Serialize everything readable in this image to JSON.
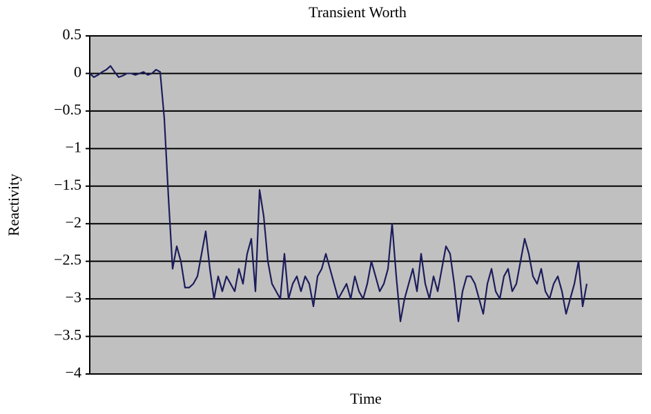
{
  "chart_data": {
    "type": "line",
    "title": "Transient Worth",
    "x_label": "Time",
    "y_label": "Reactivity",
    "values": [
      0,
      -0.05,
      -0.02,
      0.02,
      0.05,
      0.1,
      0.02,
      -0.05,
      -0.03,
      0,
      0,
      -0.02,
      0,
      0.02,
      -0.02,
      0,
      0.05,
      0.02,
      -0.6,
      -1.65,
      -2.6,
      -2.3,
      -2.5,
      -2.85,
      -2.85,
      -2.8,
      -2.7,
      -2.4,
      -2.1,
      -2.6,
      -3.0,
      -2.7,
      -2.9,
      -2.7,
      -2.8,
      -2.9,
      -2.6,
      -2.8,
      -2.4,
      -2.2,
      -2.9,
      -1.55,
      -1.9,
      -2.5,
      -2.8,
      -2.9,
      -3.0,
      -2.4,
      -3.0,
      -2.8,
      -2.7,
      -2.9,
      -2.7,
      -2.8,
      -3.1,
      -2.7,
      -2.6,
      -2.4,
      -2.6,
      -2.8,
      -3.0,
      -2.9,
      -2.8,
      -3.0,
      -2.7,
      -2.9,
      -3.0,
      -2.8,
      -2.5,
      -2.7,
      -2.9,
      -2.8,
      -2.6,
      -2.0,
      -2.7,
      -3.3,
      -3.0,
      -2.8,
      -2.6,
      -2.9,
      -2.4,
      -2.8,
      -3.0,
      -2.7,
      -2.9,
      -2.6,
      -2.3,
      -2.4,
      -2.8,
      -3.3,
      -2.9,
      -2.7,
      -2.7,
      -2.8,
      -3.0,
      -3.2,
      -2.8,
      -2.6,
      -2.9,
      -3.0,
      -2.7,
      -2.6,
      -2.9,
      -2.8,
      -2.5,
      -2.2,
      -2.4,
      -2.7,
      -2.8,
      -2.6,
      -2.9,
      -3.0,
      -2.8,
      -2.7,
      -2.9,
      -3.2,
      -3.0,
      -2.8,
      -2.5,
      -3.1,
      -2.8
    ],
    "color": "#1c1c5c",
    "plot_background": "#c0c0c0",
    "grid": true,
    "ylim": [
      -4,
      0.5
    ],
    "yticks": [
      {
        "value": -4,
        "label": "−4"
      },
      {
        "value": -3.5,
        "label": "−3.5"
      },
      {
        "value": -3,
        "label": "−3"
      },
      {
        "value": -2.5,
        "label": "−2.5"
      },
      {
        "value": -2,
        "label": "−2"
      },
      {
        "value": -1.5,
        "label": "−1.5"
      },
      {
        "value": -1,
        "label": "−1"
      },
      {
        "value": -0.5,
        "label": "−0.5"
      },
      0,
      0.5
    ]
  }
}
